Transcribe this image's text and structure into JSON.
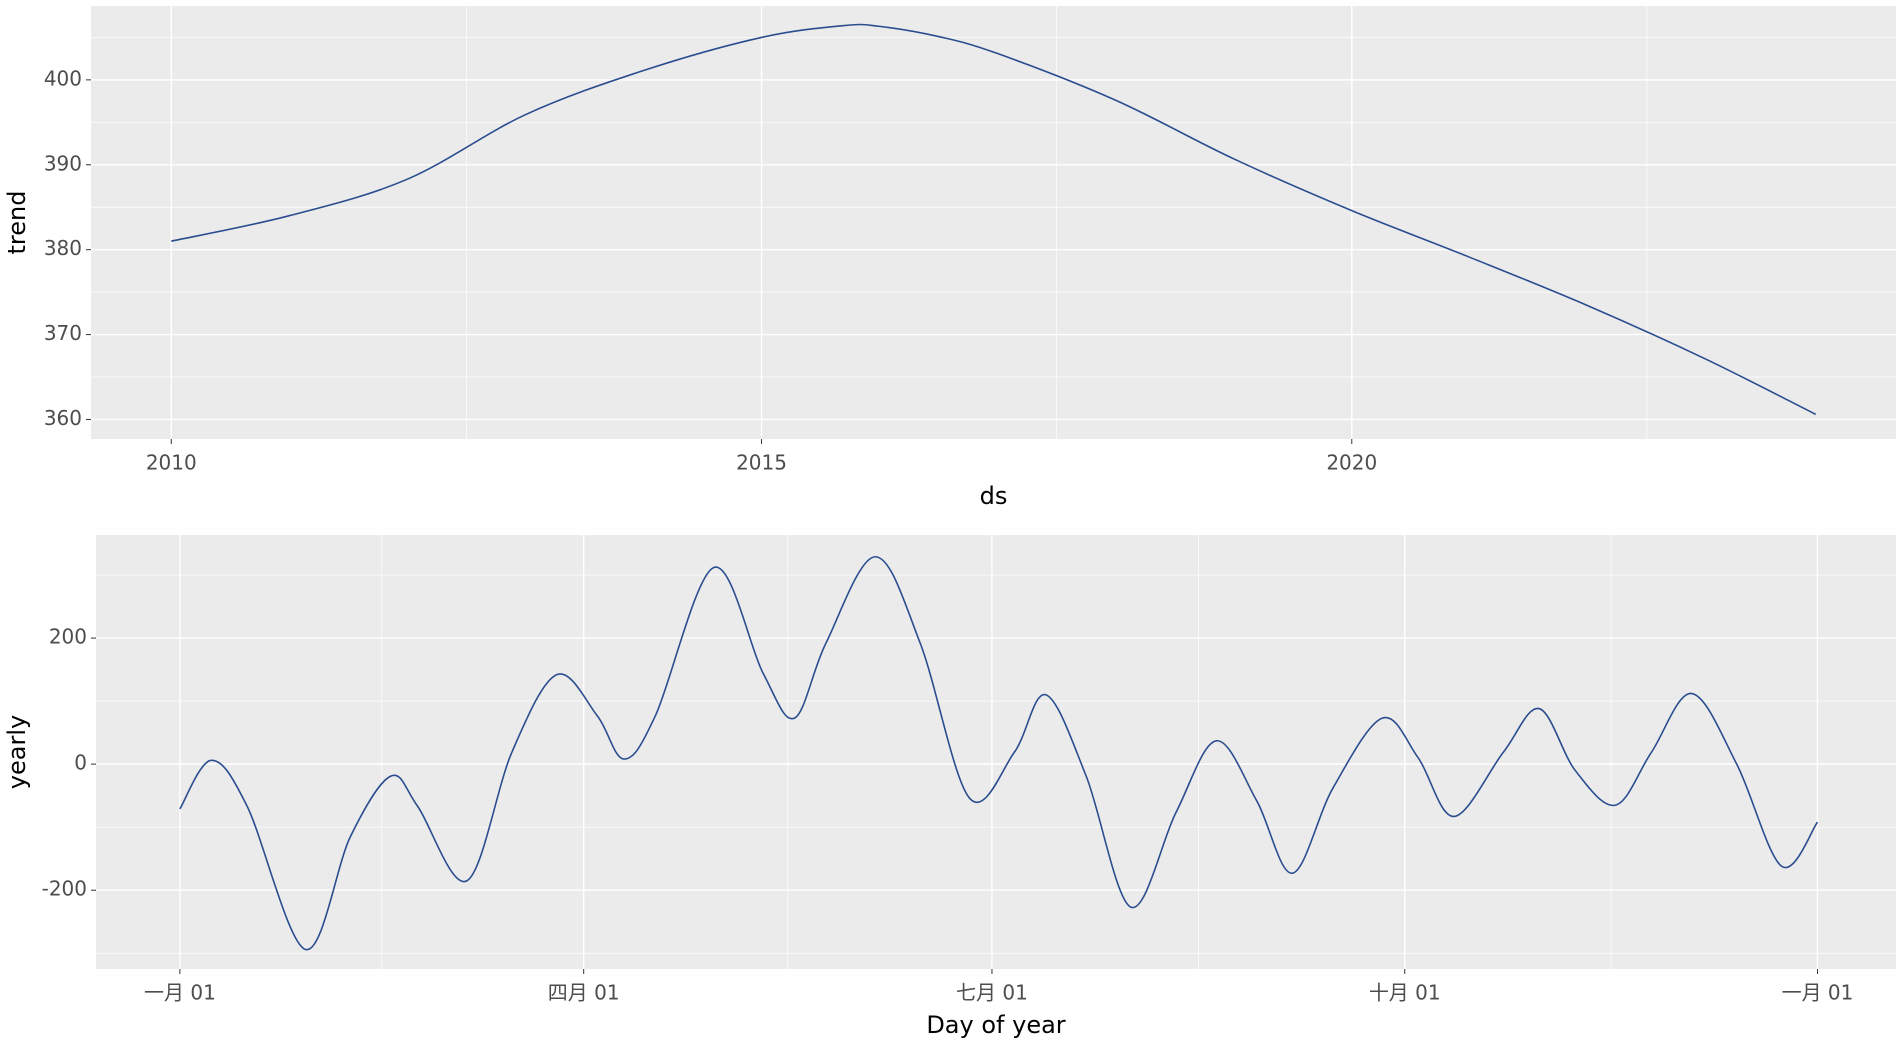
{
  "chart_data": [
    {
      "type": "line",
      "x_label": "ds",
      "y_label": "trend",
      "color": "#2a4d8f",
      "grid": true,
      "x": [
        2010,
        2011,
        2012,
        2013,
        2014,
        2015,
        2015.7,
        2016,
        2016.5,
        2017,
        2018,
        2019,
        2020,
        2021,
        2022,
        2023,
        2023.93
      ],
      "values": [
        381,
        384,
        388.3,
        395.9,
        401.1,
        405,
        406.4,
        406.3,
        405.1,
        403.1,
        397.6,
        390.7,
        384.6,
        379.1,
        373.4,
        367.1,
        360.6
      ],
      "xlim": [
        2009.32,
        2024.61
      ],
      "ylim": [
        357.7,
        408.7
      ],
      "xticks": [
        2010,
        2015,
        2020
      ],
      "yticks": [
        360,
        370,
        380,
        390,
        400
      ]
    },
    {
      "type": "line",
      "x_label": "Day of year",
      "y_label": "yearly",
      "color": "#2a4d8f",
      "grid": true,
      "x": [
        0,
        7,
        15,
        28,
        38,
        47,
        53,
        64,
        74,
        84,
        93,
        99,
        106,
        119,
        130,
        137,
        144,
        155,
        165,
        176,
        186,
        193,
        202,
        212,
        222,
        231,
        240,
        248,
        257,
        268,
        276,
        284,
        295,
        303,
        311,
        320,
        328,
        337,
        347,
        357,
        365
      ],
      "values": [
        -71,
        6,
        -67,
        -294,
        -115,
        -19,
        -67,
        -185,
        19,
        142,
        77,
        8,
        77,
        312,
        144,
        73,
        192,
        329,
        192,
        -54,
        19,
        110,
        -19,
        -227,
        -77,
        37,
        -58,
        -173,
        -38,
        73,
        10,
        -83,
        19,
        88,
        -10,
        -65,
        19,
        112,
        0,
        -162,
        -92
      ],
      "xlim": [
        -18.7,
        382.5
      ],
      "ylim": [
        -325,
        363.5
      ],
      "xticks": [
        {
          "value": 0,
          "label": "一月 01"
        },
        {
          "value": 90,
          "label": "四月 01"
        },
        {
          "value": 181,
          "label": "七月 01"
        },
        {
          "value": 273,
          "label": "十月 01"
        },
        {
          "value": 365,
          "label": "一月 01"
        }
      ],
      "yticks": [
        -200,
        0,
        200
      ]
    }
  ]
}
